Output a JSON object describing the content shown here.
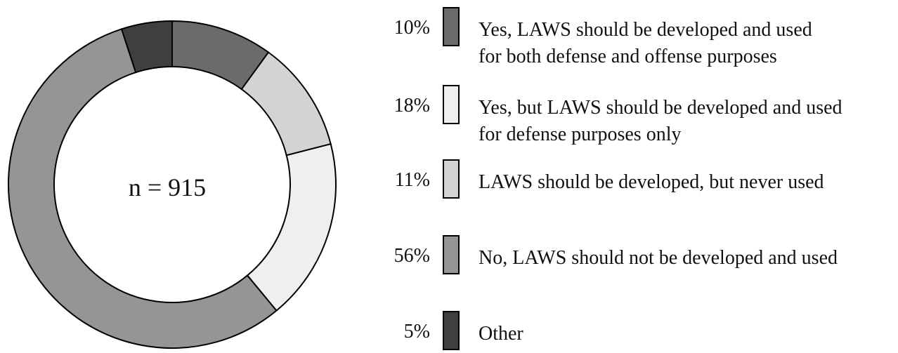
{
  "chart_data": {
    "type": "pie",
    "center_label": "n = 915",
    "slices": [
      {
        "label_line1": "Yes, LAWS should be developed and used",
        "label_line2": "for both defense and offense purposes",
        "percent_label": "10%",
        "value": 10,
        "color": "#6b6b6e"
      },
      {
        "label_line1": "Yes, but LAWS should be developed and used",
        "label_line2": "for defense purposes only",
        "percent_label": "18%",
        "value": 18,
        "color": "#efefef"
      },
      {
        "label_line1": "LAWS should be developed, but never used",
        "label_line2": "",
        "percent_label": "11%",
        "value": 11,
        "color": "#d3d3d3"
      },
      {
        "label_line1": "No, LAWS should not be developed and used",
        "label_line2": "",
        "percent_label": "56%",
        "value": 56,
        "color": "#949597"
      },
      {
        "label_line1": "Other",
        "label_line2": "",
        "percent_label": "5%",
        "value": 5,
        "color": "#3f3f40"
      }
    ],
    "ring_order": [
      4,
      3,
      1,
      2,
      0
    ]
  }
}
